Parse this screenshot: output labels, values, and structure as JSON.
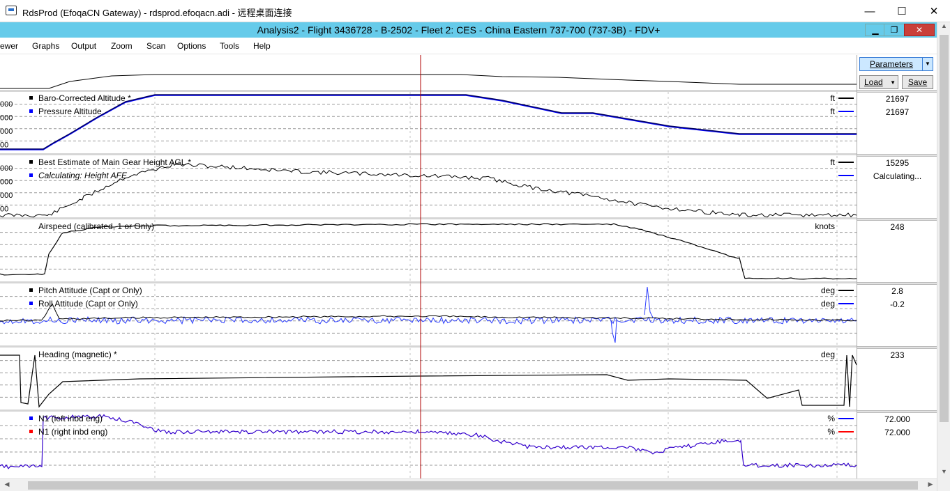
{
  "window": {
    "title": "RdsProd (EfoqaCN Gateway) - rdsprod.efoqacn.adi - 远程桌面连接",
    "minimize_glyph": "—",
    "maximize_glyph": "☐",
    "close_glyph": "✕"
  },
  "inner_window": {
    "title": "Analysis2 - Flight 3436728 - B-2502 - Fleet 2: CES - China Eastern 737-700 (737-3B) - FDV+",
    "minimize_glyph": "▁",
    "restore_glyph": "❐",
    "close_glyph": "✕"
  },
  "menu": [
    "ewer",
    "Graphs",
    "Output",
    "Zoom",
    "Scan",
    "Options",
    "Tools",
    "Help"
  ],
  "side_panel": {
    "parameters_label": "Parameters",
    "load_label": "Load",
    "save_label": "Save",
    "dropdown_glyph": "▼"
  },
  "scroll_arrows": {
    "up": "▲",
    "down": "▼",
    "left": "◀",
    "right": "▶"
  },
  "graphs": [
    {
      "id": "overview",
      "legend": [],
      "units": [],
      "values": [],
      "tick_labels": []
    },
    {
      "id": "altitude",
      "legend": [
        {
          "label": "Baro-Corrected Altitude *",
          "color": "#000000",
          "italic": false
        },
        {
          "label": "Pressure Altitude",
          "color": "#0000ff",
          "italic": false
        }
      ],
      "units": [
        "ft",
        "ft"
      ],
      "values": [
        "21697",
        "21697"
      ],
      "tick_labels": [
        "000",
        "000",
        "000",
        "00"
      ]
    },
    {
      "id": "height",
      "legend": [
        {
          "label": "Best Estimate of Main Gear Height AGL *",
          "color": "#000000",
          "italic": false
        },
        {
          "label": "Calculating: Height AFE",
          "color": "#0000ff",
          "italic": true
        }
      ],
      "units": [
        "ft",
        ""
      ],
      "values": [
        "15295",
        "Calculating..."
      ],
      "tick_labels": [
        "000",
        "000",
        "000",
        "00"
      ]
    },
    {
      "id": "airspeed",
      "legend": [
        {
          "label": "Airspeed (calibrated, 1 or Only)",
          "color": "",
          "italic": false
        }
      ],
      "units": [
        "knots"
      ],
      "values": [
        "248"
      ],
      "tick_labels": []
    },
    {
      "id": "attitude",
      "legend": [
        {
          "label": "Pitch Attitude (Capt or Only)",
          "color": "#000000",
          "italic": false
        },
        {
          "label": "Roll Attitude (Capt or Only)",
          "color": "#0000ff",
          "italic": false
        }
      ],
      "units": [
        "deg",
        "deg"
      ],
      "values": [
        "2.8",
        "-0.2"
      ],
      "tick_labels": []
    },
    {
      "id": "heading",
      "legend": [
        {
          "label": "Heading (magnetic) *",
          "color": "",
          "italic": false
        }
      ],
      "units": [
        "deg"
      ],
      "values": [
        "233"
      ],
      "tick_labels": []
    },
    {
      "id": "n1",
      "legend": [
        {
          "label": "N1 (left inbd eng)",
          "color": "#0000ff",
          "italic": false
        },
        {
          "label": "N1 (right inbd eng)",
          "color": "#ff0000",
          "italic": false
        }
      ],
      "units": [
        "%",
        "%"
      ],
      "values": [
        "72.000",
        "72.000"
      ],
      "tick_labels": []
    }
  ],
  "colors": {
    "inner_titlebar": "#66cbea",
    "cursor": "#b00000",
    "series_primary": "#000000",
    "series_secondary": "#0000cc",
    "series_n1": "#3300cc"
  }
}
